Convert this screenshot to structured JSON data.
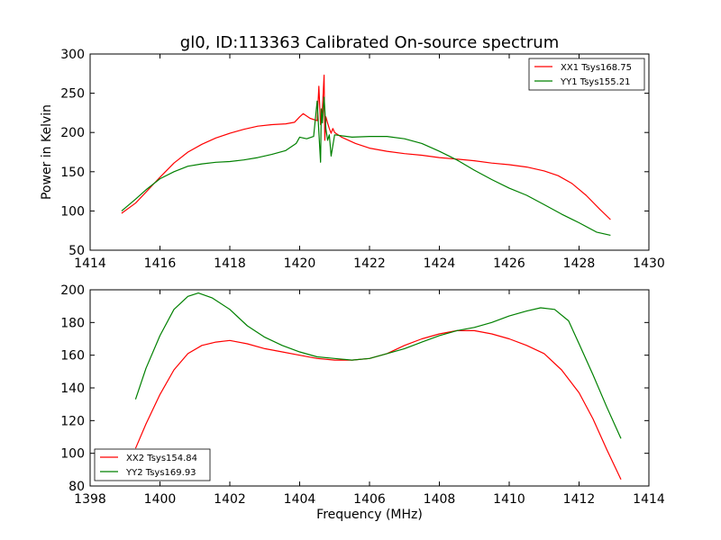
{
  "chart_data": [
    {
      "type": "line",
      "title": "gl0, ID:113363 Calibrated On-source spectrum",
      "xlabel": "",
      "ylabel": "Power in Kelvin",
      "xlim": [
        1414,
        1430
      ],
      "ylim": [
        50,
        300
      ],
      "xticks": [
        1414,
        1416,
        1418,
        1420,
        1422,
        1424,
        1426,
        1428,
        1430
      ],
      "yticks": [
        50,
        100,
        150,
        200,
        250,
        300
      ],
      "grid": false,
      "legend_position": "top-right",
      "series": [
        {
          "name": "XX1 Tsys168.75",
          "color": "#ff0000",
          "x": [
            1414.9,
            1415.3,
            1415.6,
            1416.0,
            1416.4,
            1416.8,
            1417.2,
            1417.6,
            1418.0,
            1418.4,
            1418.8,
            1419.2,
            1419.6,
            1419.85,
            1420.0,
            1420.1,
            1420.3,
            1420.5,
            1420.55,
            1420.6,
            1420.65,
            1420.7,
            1420.72,
            1420.75,
            1420.8,
            1420.85,
            1420.9,
            1420.95,
            1421.0,
            1421.2,
            1421.6,
            1422.0,
            1422.5,
            1423.0,
            1423.5,
            1424.0,
            1424.5,
            1425.0,
            1425.5,
            1426.0,
            1426.5,
            1427.0,
            1427.4,
            1427.8,
            1428.2,
            1428.6,
            1428.9
          ],
          "y": [
            97,
            110,
            124,
            143,
            161,
            175,
            185,
            193,
            199,
            204,
            208,
            210,
            211,
            213,
            220,
            224,
            218,
            215,
            259,
            210,
            229,
            273,
            190,
            220,
            212,
            205,
            199,
            205,
            200,
            194,
            186,
            180,
            176,
            173,
            171,
            168,
            166,
            164,
            161,
            159,
            156,
            151,
            145,
            135,
            120,
            102,
            89
          ]
        },
        {
          "name": "YY1 Tsys155.21",
          "color": "#008000",
          "x": [
            1414.9,
            1415.3,
            1415.6,
            1416.0,
            1416.4,
            1416.8,
            1417.2,
            1417.6,
            1418.0,
            1418.4,
            1418.8,
            1419.2,
            1419.6,
            1419.9,
            1420.0,
            1420.2,
            1420.4,
            1420.5,
            1420.55,
            1420.6,
            1420.62,
            1420.65,
            1420.7,
            1420.75,
            1420.8,
            1420.85,
            1420.9,
            1421.0,
            1421.5,
            1422.0,
            1422.5,
            1423.0,
            1423.5,
            1424.0,
            1424.5,
            1425.0,
            1425.5,
            1426.0,
            1426.5,
            1427.0,
            1427.5,
            1428.0,
            1428.5,
            1428.9
          ],
          "y": [
            100,
            115,
            127,
            141,
            150,
            157,
            160,
            162,
            163,
            165,
            168,
            172,
            177,
            186,
            194,
            192,
            195,
            240,
            200,
            162,
            230,
            212,
            245,
            205,
            190,
            197,
            170,
            197,
            194,
            195,
            195,
            192,
            186,
            176,
            165,
            152,
            140,
            129,
            120,
            108,
            96,
            85,
            73,
            69
          ]
        }
      ]
    },
    {
      "type": "line",
      "title": "",
      "xlabel": "Frequency (MHz)",
      "ylabel": "",
      "xlim": [
        1398,
        1414
      ],
      "ylim": [
        80,
        200
      ],
      "xticks": [
        1398,
        1400,
        1402,
        1404,
        1406,
        1408,
        1410,
        1412,
        1414
      ],
      "yticks": [
        80,
        100,
        120,
        140,
        160,
        180,
        200
      ],
      "grid": false,
      "legend_position": "bottom-left",
      "series": [
        {
          "name": "XX2 Tsys154.84",
          "color": "#ff0000",
          "x": [
            1399.3,
            1399.6,
            1400.0,
            1400.4,
            1400.8,
            1401.2,
            1401.6,
            1402.0,
            1402.5,
            1403.0,
            1403.5,
            1404.0,
            1404.5,
            1405.0,
            1405.5,
            1406.0,
            1406.5,
            1407.0,
            1407.5,
            1408.0,
            1408.5,
            1409.0,
            1409.5,
            1410.0,
            1410.5,
            1411.0,
            1411.5,
            1412.0,
            1412.4,
            1412.8,
            1413.2
          ],
          "y": [
            103,
            118,
            136,
            151,
            161,
            166,
            168,
            169,
            167,
            164,
            162,
            160,
            158,
            157,
            157,
            158,
            161,
            166,
            170,
            173,
            175,
            175,
            173,
            170,
            166,
            161,
            151,
            137,
            121,
            102,
            84
          ]
        },
        {
          "name": "YY2 Tsys169.93",
          "color": "#008000",
          "x": [
            1399.3,
            1399.6,
            1400.0,
            1400.4,
            1400.8,
            1401.1,
            1401.5,
            1402.0,
            1402.5,
            1403.0,
            1403.5,
            1404.0,
            1404.5,
            1405.0,
            1405.5,
            1406.0,
            1406.5,
            1407.0,
            1407.5,
            1408.0,
            1408.5,
            1409.0,
            1409.5,
            1410.0,
            1410.5,
            1410.9,
            1411.3,
            1411.7,
            1412.0,
            1412.4,
            1412.8,
            1413.2
          ],
          "y": [
            133,
            152,
            172,
            188,
            196,
            198,
            195,
            188,
            178,
            171,
            166,
            162,
            159,
            158,
            157,
            158,
            161,
            164,
            168,
            172,
            175,
            177,
            180,
            184,
            187,
            189,
            188,
            181,
            167,
            148,
            128,
            109
          ]
        }
      ]
    }
  ]
}
